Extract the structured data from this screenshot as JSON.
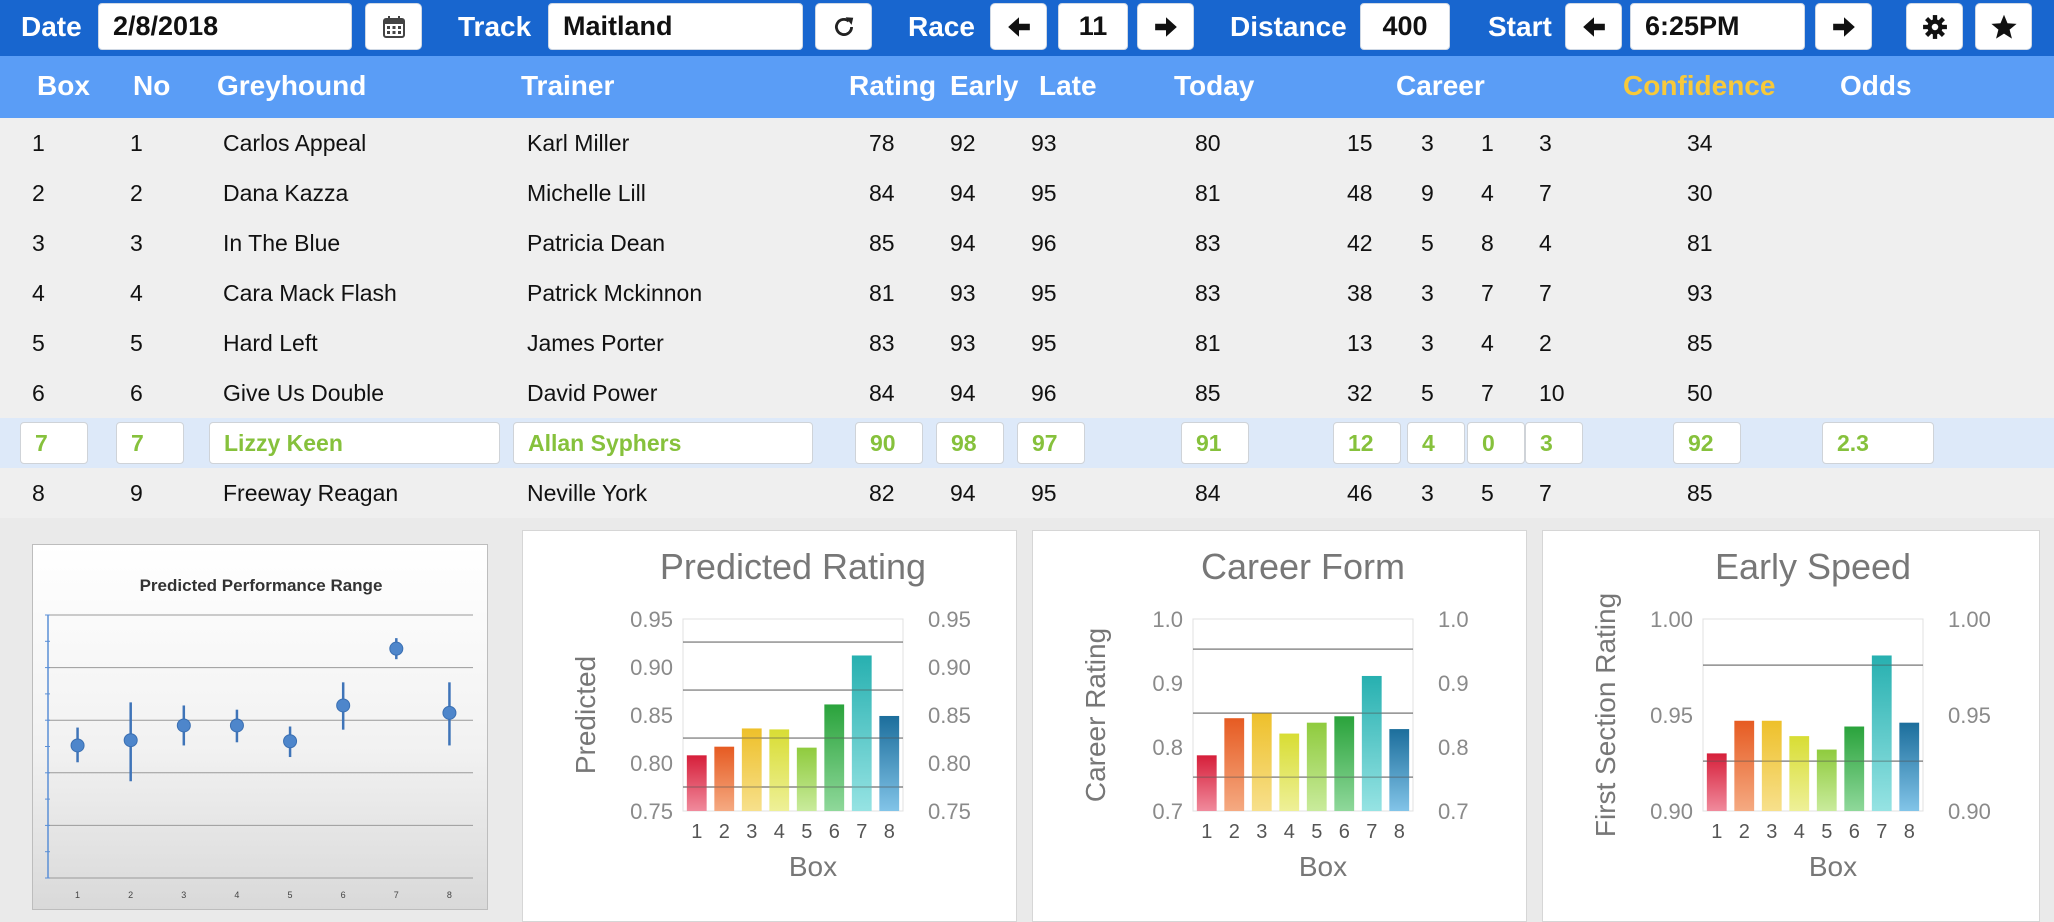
{
  "toolbar": {
    "date_label": "Date",
    "date_value": "2/8/2018",
    "track_label": "Track",
    "track_value": "Maitland",
    "race_label": "Race",
    "race_value": "11",
    "distance_label": "Distance",
    "distance_value": "400",
    "start_label": "Start",
    "start_value": "6:25PM",
    "icons": [
      "calendar-icon",
      "refresh-icon",
      "arrow-left-icon",
      "arrow-right-icon",
      "gear-icon",
      "star-icon"
    ]
  },
  "table": {
    "headers": {
      "box": "Box",
      "no": "No",
      "greyhound": "Greyhound",
      "trainer": "Trainer",
      "rating": "Rating",
      "early": "Early",
      "late": "Late",
      "today": "Today",
      "career": "Career",
      "confidence": "Confidence",
      "odds": "Odds"
    },
    "rows": [
      {
        "box": "1",
        "no": "1",
        "greyhound": "Carlos Appeal",
        "trainer": "Karl Miller",
        "rating": "78",
        "early": "92",
        "late": "93",
        "today": "80",
        "c1": "15",
        "c2": "3",
        "c3": "1",
        "c4": "3",
        "confidence": "34",
        "odds": ""
      },
      {
        "box": "2",
        "no": "2",
        "greyhound": "Dana Kazza",
        "trainer": "Michelle Lill",
        "rating": "84",
        "early": "94",
        "late": "95",
        "today": "81",
        "c1": "48",
        "c2": "9",
        "c3": "4",
        "c4": "7",
        "confidence": "30",
        "odds": ""
      },
      {
        "box": "3",
        "no": "3",
        "greyhound": "In The Blue",
        "trainer": "Patricia Dean",
        "rating": "85",
        "early": "94",
        "late": "96",
        "today": "83",
        "c1": "42",
        "c2": "5",
        "c3": "8",
        "c4": "4",
        "confidence": "81",
        "odds": ""
      },
      {
        "box": "4",
        "no": "4",
        "greyhound": "Cara Mack Flash",
        "trainer": "Patrick Mckinnon",
        "rating": "81",
        "early": "93",
        "late": "95",
        "today": "83",
        "c1": "38",
        "c2": "3",
        "c3": "7",
        "c4": "7",
        "confidence": "93",
        "odds": ""
      },
      {
        "box": "5",
        "no": "5",
        "greyhound": "Hard Left",
        "trainer": "James Porter",
        "rating": "83",
        "early": "93",
        "late": "95",
        "today": "81",
        "c1": "13",
        "c2": "3",
        "c3": "4",
        "c4": "2",
        "confidence": "85",
        "odds": ""
      },
      {
        "box": "6",
        "no": "6",
        "greyhound": "Give Us Double",
        "trainer": "David Power",
        "rating": "84",
        "early": "94",
        "late": "96",
        "today": "85",
        "c1": "32",
        "c2": "5",
        "c3": "7",
        "c4": "10",
        "confidence": "50",
        "odds": ""
      },
      {
        "box": "7",
        "no": "7",
        "greyhound": "Lizzy Keen",
        "trainer": "Allan Syphers",
        "rating": "90",
        "early": "98",
        "late": "97",
        "today": "91",
        "c1": "12",
        "c2": "4",
        "c3": "0",
        "c4": "3",
        "confidence": "92",
        "odds": "2.3"
      },
      {
        "box": "8",
        "no": "9",
        "greyhound": "Freeway Reagan",
        "trainer": "Neville York",
        "rating": "82",
        "early": "94",
        "late": "95",
        "today": "84",
        "c1": "46",
        "c2": "3",
        "c3": "5",
        "c4": "7",
        "confidence": "85",
        "odds": ""
      }
    ],
    "selected_row": 6,
    "colors": {
      "header_bg": "#5a9df6",
      "toolbar_bg": "#1866cf",
      "selected_text": "#86c13c",
      "confidence_header": "#f7c93a"
    }
  },
  "chart_data": [
    {
      "type": "scatter",
      "title": "Predicted Performance Range",
      "categories": [
        "1",
        "2",
        "3",
        "4",
        "5",
        "6",
        "7",
        "8"
      ],
      "values": [
        0.826,
        0.831,
        0.845,
        0.845,
        0.83,
        0.864,
        0.918,
        0.857
      ],
      "high": [
        0.843,
        0.867,
        0.864,
        0.86,
        0.844,
        0.886,
        0.928,
        0.886
      ],
      "low": [
        0.81,
        0.792,
        0.826,
        0.829,
        0.815,
        0.841,
        0.908,
        0.826
      ],
      "ylim": [
        0.7,
        0.95
      ],
      "grid": true
    },
    {
      "type": "bar",
      "title": "Predicted Rating",
      "categories": [
        "1",
        "2",
        "3",
        "4",
        "5",
        "6",
        "7",
        "8"
      ],
      "values": [
        0.808,
        0.817,
        0.836,
        0.835,
        0.816,
        0.861,
        0.912,
        0.849
      ],
      "xlabel": "Box",
      "ylabel": "Predicted",
      "ylim": [
        0.75,
        0.95
      ],
      "yticks": [
        "0.75",
        "0.80",
        "0.85",
        "0.90",
        "0.95"
      ],
      "grid_lines": [
        0.775,
        0.826,
        0.876,
        0.926
      ],
      "secondary_axis": true
    },
    {
      "type": "bar",
      "title": "Career Form",
      "categories": [
        "1",
        "2",
        "3",
        "4",
        "5",
        "6",
        "7",
        "8"
      ],
      "values": [
        0.787,
        0.845,
        0.853,
        0.821,
        0.838,
        0.848,
        0.911,
        0.828
      ],
      "xlabel": "Box",
      "ylabel": "Career Rating",
      "ylim": [
        0.7,
        1.0
      ],
      "yticks": [
        "0.7",
        "0.8",
        "0.9",
        "1.0"
      ],
      "grid_lines": [
        0.753,
        0.853,
        0.953
      ],
      "secondary_axis": true
    },
    {
      "type": "bar",
      "title": "Early Speed",
      "categories": [
        "1",
        "2",
        "3",
        "4",
        "5",
        "6",
        "7",
        "8"
      ],
      "values": [
        0.93,
        0.947,
        0.947,
        0.939,
        0.932,
        0.944,
        0.981,
        0.946
      ],
      "xlabel": "Box",
      "ylabel": "First Section Rating",
      "ylim": [
        0.9,
        1.0
      ],
      "yticks": [
        "0.90",
        "0.95",
        "1.00"
      ],
      "grid_lines": [
        0.926,
        0.976
      ],
      "secondary_axis": true
    }
  ],
  "bar_colors": {
    "top": [
      "#d61f3a",
      "#e65b22",
      "#eec02a",
      "#d8dd34",
      "#8fcb3e",
      "#2aa33c",
      "#27b0b0",
      "#1c6e9c"
    ],
    "bottom": [
      "#f08a9c",
      "#f5aa82",
      "#f7e08c",
      "#eef098",
      "#c9eb9c",
      "#8fd89a",
      "#96e3e3",
      "#82c4e8"
    ]
  }
}
